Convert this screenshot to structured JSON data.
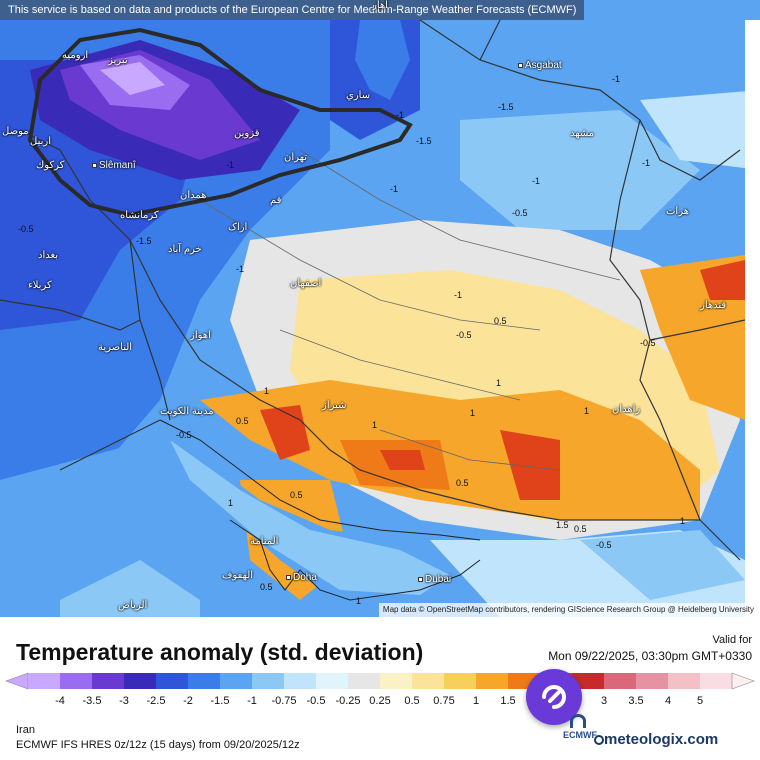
{
  "map": {
    "top_note": "This service is based on data and products of the European Centre for Medium-Range Weather Forecasts (ECMWF)",
    "attribution": "Map data © OpenStreetMap contributors, rendering GIScience Research Group @ Heidelberg University",
    "cities": [
      {
        "id": "asgabat",
        "label": "Asgabat"
      },
      {
        "id": "slemani",
        "label": "Slêmanî"
      },
      {
        "id": "tabriz",
        "label": "تبریز"
      },
      {
        "id": "urmia",
        "label": "ارومیه"
      },
      {
        "id": "tehran",
        "label": "تهران"
      },
      {
        "id": "qazvin",
        "label": "قزوین"
      },
      {
        "id": "mashhad",
        "label": "مشهد"
      },
      {
        "id": "hamadan",
        "label": "همدان"
      },
      {
        "id": "kermanshah",
        "label": "کرمانشاه"
      },
      {
        "id": "qom",
        "label": "قم"
      },
      {
        "id": "arak",
        "label": "اراک"
      },
      {
        "id": "khorramabad",
        "label": "خرم آباد"
      },
      {
        "id": "baghdad",
        "label": "بغداد"
      },
      {
        "id": "karbala",
        "label": "كربلاء"
      },
      {
        "id": "kirkuk",
        "label": "كركوك"
      },
      {
        "id": "mosul",
        "label": "موصل"
      },
      {
        "id": "erbil",
        "label": "اربیل"
      },
      {
        "id": "isfahan",
        "label": "اصفهان"
      },
      {
        "id": "ahvaz",
        "label": "اهواز"
      },
      {
        "id": "nasiriyah",
        "label": "الناصرية"
      },
      {
        "id": "shiraz",
        "label": "شیراز"
      },
      {
        "id": "kuwait",
        "label": "مدينة الكويت"
      },
      {
        "id": "zahedan",
        "label": "زاهدان"
      },
      {
        "id": "herat",
        "label": "هرات"
      },
      {
        "id": "manama",
        "label": "المنامة"
      },
      {
        "id": "hofuf",
        "label": "الهفوف"
      },
      {
        "id": "doha",
        "label": "Doha"
      },
      {
        "id": "dubai",
        "label": "Dubai"
      },
      {
        "id": "riyadh",
        "label": "الرياض"
      },
      {
        "id": "kandahar",
        "label": "قندهار"
      },
      {
        "id": "sari",
        "label": "ساري"
      },
      {
        "id": "ahar",
        "label": "آهار"
      }
    ],
    "contour_labels": [
      "-1",
      "-1.5",
      "-1",
      "-1",
      "-0.5",
      "-1",
      "-1.5",
      "-1",
      "-1",
      "-0.5",
      "0.5",
      "1",
      "1",
      "1",
      "1",
      "0.5",
      "-0.5",
      "1",
      "0.5",
      "-0.5",
      "-0.5",
      "0.5",
      "1",
      "1.5",
      "1",
      "0.5",
      "-0.5",
      "-1.5",
      "-1",
      "-1",
      "0.5",
      "1"
    ]
  },
  "legend": {
    "title": "Temperature anomaly (std. deviation)",
    "valid_label": "Valid for",
    "valid_datetime": "Mon 09/22/2025, 03:30pm GMT+0330",
    "ticks": [
      "-4",
      "-3.5",
      "-3",
      "-2.5",
      "-2",
      "-1.5",
      "-1",
      "-0.75",
      "-0.5",
      "-0.25",
      "0.25",
      "0.5",
      "0.75",
      "1",
      "1.5",
      "2",
      "2.5",
      "3",
      "3.5",
      "4",
      "5"
    ],
    "colors": [
      "#c9a8ff",
      "#9a6cf0",
      "#6a3ad0",
      "#3a2ab8",
      "#2f55d8",
      "#3a7de8",
      "#5aa4f2",
      "#8cc8f6",
      "#bfe4fb",
      "#e1f3fb",
      "#e6e6e6",
      "#fbf1c6",
      "#fbe39a",
      "#f9cf5c",
      "#f6a62a",
      "#ef7b18",
      "#e0421a",
      "#c62a2a",
      "#d9687a",
      "#e593a2",
      "#f3c0c8",
      "#fadde2"
    ],
    "region": "Iran",
    "model_line": "ECMWF IFS HRES 0z/12z (15 days) from 09/20/2025/12z",
    "ecmwf_label": "ECMWF",
    "brand": "meteologix.com"
  }
}
